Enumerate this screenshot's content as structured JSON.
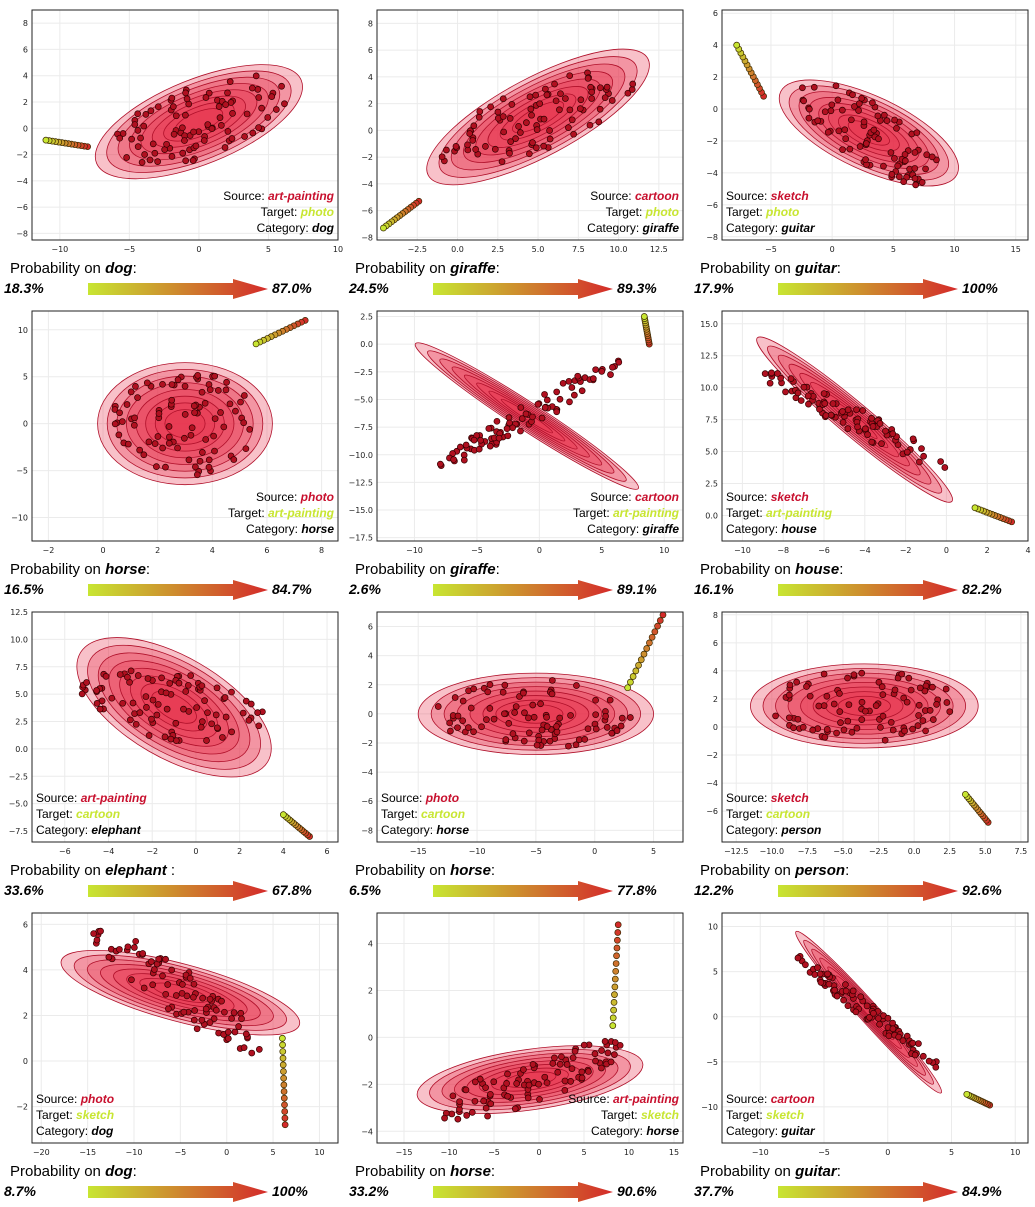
{
  "colors": {
    "source": "#c8102e",
    "target": "#c8e632",
    "category": "#000000",
    "kde": "#e8324b",
    "point": "#b01020",
    "grad_start": "#c8e632",
    "grad_end": "#d42a2a"
  },
  "prob_prefix": "Probability on ",
  "source_label": "Source: ",
  "target_label": "Target: ",
  "category_label": "Category: ",
  "chart_data": [
    {
      "type": "scatter",
      "source": "art-painting",
      "target": "photo",
      "category": "dog",
      "prob_label_suffix": ":",
      "prob_min": "18.3%",
      "prob_max": "87.0%",
      "xlim": [
        -12,
        10
      ],
      "ylim": [
        -8.5,
        9
      ],
      "xticks": [
        -10,
        -5,
        0,
        5,
        10
      ],
      "yticks": [
        -8,
        -6,
        -4,
        -2,
        0,
        2,
        4,
        6,
        8
      ],
      "xtick_labels": [
        "−10",
        "−5",
        "0",
        "5",
        "10"
      ],
      "ytick_labels": [
        "−8",
        "−6",
        "−4",
        "−2",
        "0",
        "2",
        "4",
        "6",
        "8"
      ],
      "annot_align": "right",
      "cluster": {
        "cx": 0,
        "cy": 0.5,
        "rx": 8,
        "ry": 3.2,
        "angle": 22
      },
      "trail": {
        "x0": -11,
        "y0": -0.9,
        "x1": -8,
        "y1": -1.4
      }
    },
    {
      "type": "scatter",
      "source": "cartoon",
      "target": "photo",
      "category": "giraffe",
      "prob_label_suffix": ":",
      "prob_min": "24.5%",
      "prob_max": "89.3%",
      "xlim": [
        -5,
        14
      ],
      "ylim": [
        -8.2,
        9
      ],
      "xticks": [
        -2.5,
        0,
        2.5,
        5,
        7.5,
        10,
        12.5
      ],
      "yticks": [
        -8,
        -6,
        -4,
        -2,
        0,
        2,
        4,
        6,
        8
      ],
      "xtick_labels": [
        "−2.5",
        "0.0",
        "2.5",
        "5.0",
        "7.5",
        "10.0",
        "12.5"
      ],
      "ytick_labels": [
        "−8",
        "−6",
        "−4",
        "−2",
        "0",
        "2",
        "4",
        "6",
        "8"
      ],
      "annot_align": "right",
      "cluster": {
        "cx": 5,
        "cy": 1,
        "rx": 8,
        "ry": 2.8,
        "angle": 28
      },
      "trail": {
        "x0": -4.6,
        "y0": -7.3,
        "x1": -2.4,
        "y1": -5.3
      }
    },
    {
      "type": "scatter",
      "source": "sketch",
      "target": "photo",
      "category": "guitar",
      "prob_label_suffix": ":",
      "prob_min": "17.9%",
      "prob_max": "100%",
      "xlim": [
        -9,
        16
      ],
      "ylim": [
        -8.2,
        6.2
      ],
      "xticks": [
        -5,
        0,
        5,
        10,
        15
      ],
      "yticks": [
        -8,
        -6,
        -4,
        -2,
        0,
        2,
        4,
        6
      ],
      "xtick_labels": [
        "−5",
        "0",
        "5",
        "10",
        "15"
      ],
      "ytick_labels": [
        "−8",
        "−6",
        "−4",
        "−2",
        "0",
        "2",
        "4",
        "6"
      ],
      "annot_align": "left",
      "cluster": {
        "cx": 3,
        "cy": -1.5,
        "rx": 7.5,
        "ry": 2.4,
        "angle": -25
      },
      "trail": {
        "x0": -7.8,
        "y0": 4,
        "x1": -5.6,
        "y1": 0.8
      }
    },
    {
      "type": "scatter",
      "source": "photo",
      "target": "art-painting",
      "category": "horse",
      "prob_label_suffix": ":",
      "prob_min": "16.5%",
      "prob_max": "84.7%",
      "xlim": [
        -2.6,
        8.6
      ],
      "ylim": [
        -12.5,
        12
      ],
      "xticks": [
        -2,
        0,
        2,
        4,
        6,
        8
      ],
      "yticks": [
        -10,
        -5,
        0,
        5,
        10
      ],
      "xtick_labels": [
        "−2",
        "0",
        "2",
        "4",
        "6",
        "8"
      ],
      "ytick_labels": [
        "−10",
        "−5",
        "0",
        "5",
        "10"
      ],
      "annot_align": "right",
      "cluster": {
        "cx": 3,
        "cy": 0,
        "rx": 3.2,
        "ry": 6.5,
        "angle": 0
      },
      "trail": {
        "x0": 5.6,
        "y0": 8.5,
        "x1": 7.4,
        "y1": 11
      }
    },
    {
      "type": "scatter",
      "source": "cartoon",
      "target": "art-painting",
      "category": "giraffe",
      "prob_label_suffix": ":",
      "prob_min": "2.6%",
      "prob_max": "89.1%",
      "xlim": [
        -13,
        11.5
      ],
      "ylim": [
        17.8,
        -3
      ],
      "xticks": [
        -10,
        -5,
        0,
        5,
        10
      ],
      "yticks": [
        -2.5,
        0,
        2.5,
        5,
        7.5,
        10,
        12.5,
        15,
        17.5
      ],
      "xtick_labels": [
        "−10",
        "−5",
        "0",
        "5",
        "10"
      ],
      "ytick_labels": [
        "2.5",
        "0.0",
        "−2.5",
        "−5.0",
        "−7.5",
        "−10.0",
        "−12.5",
        "−15.0",
        "−17.5"
      ],
      "annot_align": "right",
      "cluster": {
        "cx": -1,
        "cy": 6.5,
        "rx": 11,
        "ry": 1.2,
        "angle": -33
      },
      "trail": {
        "x0": 8.4,
        "y0": -2.5,
        "x1": 8.8,
        "y1": 0
      }
    },
    {
      "type": "scatter",
      "source": "sketch",
      "target": "art-painting",
      "category": "house",
      "prob_label_suffix": ":",
      "prob_min": "16.1%",
      "prob_max": "82.2%",
      "xlim": [
        -11,
        4
      ],
      "ylim": [
        -2,
        16
      ],
      "xticks": [
        -10,
        -8,
        -6,
        -4,
        -2,
        0,
        2,
        4
      ],
      "yticks": [
        0,
        2.5,
        5,
        7.5,
        10,
        12.5,
        15
      ],
      "xtick_labels": [
        "−10",
        "−8",
        "−6",
        "−4",
        "−2",
        "0",
        "2",
        "4"
      ],
      "ytick_labels": [
        "0.0",
        "2.5",
        "5.0",
        "7.5",
        "10.0",
        "12.5",
        "15.0"
      ],
      "annot_align": "left",
      "cluster": {
        "cx": -4.5,
        "cy": 7.5,
        "rx": 7.2,
        "ry": 1,
        "angle": -40
      },
      "trail": {
        "x0": 1.4,
        "y0": 0.6,
        "x1": 3.2,
        "y1": -0.5
      }
    },
    {
      "type": "scatter",
      "source": "art-painting",
      "target": "cartoon",
      "category": "elephant",
      "prob_label_suffix": " :",
      "prob_min": "33.6%",
      "prob_max": "67.8%",
      "xlim": [
        -7.5,
        6.5
      ],
      "ylim": [
        -8.5,
        12.5
      ],
      "xticks": [
        -6,
        -4,
        -2,
        0,
        2,
        4,
        6
      ],
      "yticks": [
        -7.5,
        -5,
        -2.5,
        0,
        2.5,
        5,
        7.5,
        10,
        12.5
      ],
      "xtick_labels": [
        "−6",
        "−4",
        "−2",
        "0",
        "2",
        "4",
        "6"
      ],
      "ytick_labels": [
        "−7.5",
        "−5.0",
        "−2.5",
        "0.0",
        "2.5",
        "5.0",
        "7.5",
        "10.0",
        "12.5"
      ],
      "annot_align": "left",
      "cluster": {
        "cx": -1,
        "cy": 3.8,
        "rx": 5.5,
        "ry": 3.5,
        "angle": -30
      },
      "trail": {
        "x0": 4,
        "y0": -6,
        "x1": 5.2,
        "y1": -8
      }
    },
    {
      "type": "scatter",
      "source": "photo",
      "target": "cartoon",
      "category": "horse",
      "prob_label_suffix": ":",
      "prob_min": "6.5%",
      "prob_max": "77.8%",
      "xlim": [
        -18.5,
        7.5
      ],
      "ylim": [
        -8.8,
        7
      ],
      "xticks": [
        -15,
        -10,
        -5,
        0,
        5
      ],
      "yticks": [
        -8,
        -6,
        -4,
        -2,
        0,
        2,
        4,
        6
      ],
      "xtick_labels": [
        "−15",
        "−10",
        "−5",
        "0",
        "5"
      ],
      "ytick_labels": [
        "−8",
        "−6",
        "−4",
        "−2",
        "0",
        "2",
        "4",
        "6"
      ],
      "annot_align": "left",
      "cluster": {
        "cx": -5,
        "cy": 0,
        "rx": 10,
        "ry": 2.8,
        "angle": 0
      },
      "trail": {
        "x0": 2.8,
        "y0": 1.8,
        "x1": 5.8,
        "y1": 6.8
      }
    },
    {
      "type": "scatter",
      "source": "sketch",
      "target": "cartoon",
      "category": "person",
      "prob_label_suffix": ":",
      "prob_min": "12.2%",
      "prob_max": "92.6%",
      "xlim": [
        -13.5,
        8
      ],
      "ylim": [
        -8.2,
        8.2
      ],
      "xticks": [
        -12.5,
        -10,
        -7.5,
        -5,
        -2.5,
        0,
        2.5,
        5,
        7.5
      ],
      "yticks": [
        -6,
        -4,
        -2,
        0,
        2,
        4,
        6,
        8
      ],
      "xtick_labels": [
        "−12.5",
        "−10.0",
        "−7.5",
        "−5.0",
        "−2.5",
        "0.0",
        "2.5",
        "5.0",
        "7.5"
      ],
      "ytick_labels": [
        "−6",
        "−4",
        "−2",
        "0",
        "2",
        "4",
        "6",
        "8"
      ],
      "annot_align": "left",
      "cluster": {
        "cx": -3.5,
        "cy": 1.5,
        "rx": 8,
        "ry": 3,
        "angle": 0
      },
      "trail": {
        "x0": 3.6,
        "y0": -4.8,
        "x1": 5.2,
        "y1": -6.8
      }
    },
    {
      "type": "scatter",
      "source": "photo",
      "target": "sketch",
      "category": "dog",
      "prob_label_suffix": ":",
      "prob_min": "8.7%",
      "prob_max": "100%",
      "xlim": [
        -21,
        12
      ],
      "ylim": [
        -3.6,
        6.5
      ],
      "xticks": [
        -20,
        -15,
        -10,
        -5,
        0,
        5,
        10
      ],
      "yticks": [
        -2,
        0,
        2,
        4,
        6
      ],
      "xtick_labels": [
        "−20",
        "−15",
        "−10",
        "−5",
        "0",
        "5",
        "10"
      ],
      "ytick_labels": [
        "−2",
        "0",
        "2",
        "4",
        "6"
      ],
      "annot_align": "left",
      "cluster": {
        "cx": -5,
        "cy": 3,
        "rx": 11.5,
        "ry": 1.3,
        "angle": -15
      },
      "trail": {
        "x0": 6,
        "y0": 1,
        "x1": 6.3,
        "y1": -2.8
      }
    },
    {
      "type": "scatter",
      "source": "art-painting",
      "target": "sketch",
      "category": "horse",
      "prob_label_suffix": ":",
      "prob_min": "33.2%",
      "prob_max": "90.6%",
      "xlim": [
        -18,
        16
      ],
      "ylim": [
        -4.5,
        5.3
      ],
      "xticks": [
        -15,
        -10,
        -5,
        0,
        5,
        10,
        15
      ],
      "yticks": [
        -4,
        -2,
        0,
        2,
        4
      ],
      "xtick_labels": [
        "−15",
        "−10",
        "−5",
        "0",
        "5",
        "10",
        "15"
      ],
      "ytick_labels": [
        "−4",
        "−2",
        "0",
        "2",
        "4"
      ],
      "annot_align": "right",
      "cluster": {
        "cx": -1,
        "cy": -1.8,
        "rx": 12,
        "ry": 1.3,
        "angle": 8
      },
      "trail": {
        "x0": 8.2,
        "y0": 0.5,
        "x1": 8.8,
        "y1": 4.8
      }
    },
    {
      "type": "scatter",
      "source": "cartoon",
      "target": "sketch",
      "category": "guitar",
      "prob_label_suffix": ":",
      "prob_min": "37.7%",
      "prob_max": "84.9%",
      "xlim": [
        -13,
        11
      ],
      "ylim": [
        -14,
        11.5
      ],
      "xticks": [
        -10,
        -5,
        0,
        5,
        10
      ],
      "yticks": [
        -10,
        -5,
        0,
        5,
        10
      ],
      "xtick_labels": [
        "−10",
        "−5",
        "0",
        "5",
        "10"
      ],
      "ytick_labels": [
        "−10",
        "−5",
        "0",
        "5",
        "10"
      ],
      "annot_align": "left",
      "cluster": {
        "cx": -1.5,
        "cy": 0.5,
        "rx": 10,
        "ry": 0.9,
        "angle": -48
      },
      "trail": {
        "x0": 6.2,
        "y0": -8.6,
        "x1": 8,
        "y1": -9.8
      }
    }
  ]
}
